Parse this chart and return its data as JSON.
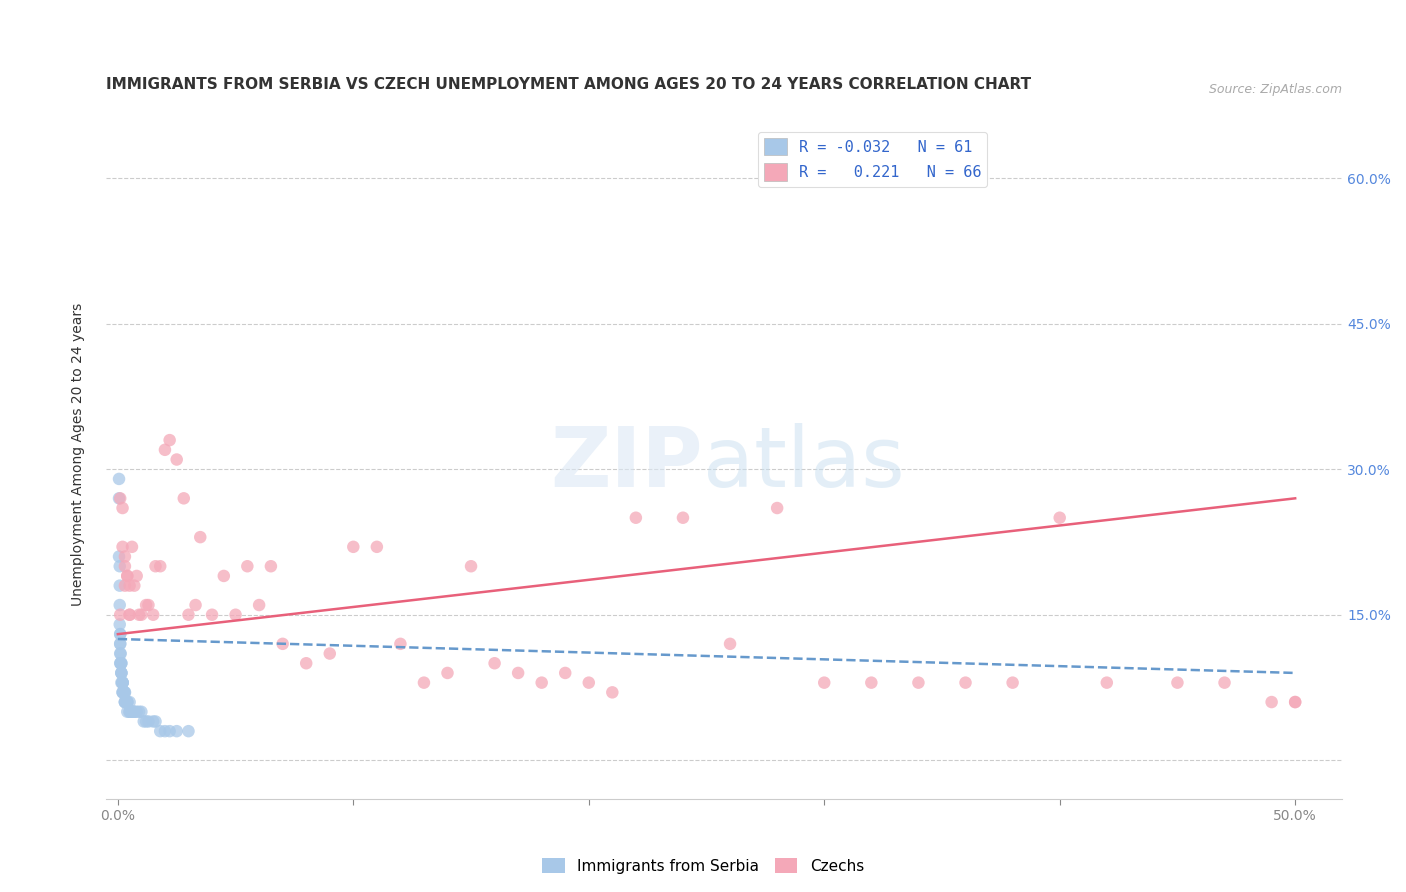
{
  "title": "IMMIGRANTS FROM SERBIA VS CZECH UNEMPLOYMENT AMONG AGES 20 TO 24 YEARS CORRELATION CHART",
  "source": "Source: ZipAtlas.com",
  "ylabel": "Unemployment Among Ages 20 to 24 years",
  "x_ticks": [
    0.0,
    0.1,
    0.2,
    0.3,
    0.4,
    0.5
  ],
  "x_tick_labels": [
    "0.0%",
    "",
    "",
    "",
    "",
    "50.0%"
  ],
  "y_ticks": [
    0.0,
    0.15,
    0.3,
    0.45,
    0.6
  ],
  "y_tick_labels_right": [
    "",
    "15.0%",
    "30.0%",
    "45.0%",
    "60.0%"
  ],
  "xlim": [
    -0.005,
    0.52
  ],
  "ylim": [
    -0.04,
    0.67
  ],
  "color_serbia": "#a8c8e8",
  "color_czech": "#f4a8b8",
  "color_serbia_line": "#6699cc",
  "color_czech_line": "#e8607a",
  "marker_size": 9,
  "serbia_x": [
    0.0005,
    0.0005,
    0.0005,
    0.0008,
    0.0008,
    0.0008,
    0.0008,
    0.001,
    0.001,
    0.001,
    0.001,
    0.001,
    0.001,
    0.0012,
    0.0012,
    0.0012,
    0.0015,
    0.0015,
    0.0015,
    0.0015,
    0.0015,
    0.0015,
    0.002,
    0.002,
    0.002,
    0.002,
    0.002,
    0.002,
    0.002,
    0.0025,
    0.0025,
    0.0025,
    0.003,
    0.003,
    0.003,
    0.003,
    0.003,
    0.004,
    0.004,
    0.004,
    0.004,
    0.005,
    0.005,
    0.005,
    0.006,
    0.006,
    0.007,
    0.007,
    0.008,
    0.009,
    0.01,
    0.011,
    0.012,
    0.013,
    0.015,
    0.016,
    0.018,
    0.02,
    0.022,
    0.025,
    0.03
  ],
  "serbia_y": [
    0.29,
    0.27,
    0.21,
    0.2,
    0.18,
    0.16,
    0.14,
    0.13,
    0.13,
    0.12,
    0.12,
    0.11,
    0.1,
    0.11,
    0.1,
    0.1,
    0.1,
    0.1,
    0.09,
    0.09,
    0.09,
    0.08,
    0.08,
    0.08,
    0.08,
    0.08,
    0.08,
    0.07,
    0.07,
    0.07,
    0.07,
    0.07,
    0.07,
    0.07,
    0.06,
    0.06,
    0.06,
    0.06,
    0.06,
    0.06,
    0.05,
    0.06,
    0.05,
    0.05,
    0.05,
    0.05,
    0.05,
    0.05,
    0.05,
    0.05,
    0.05,
    0.04,
    0.04,
    0.04,
    0.04,
    0.04,
    0.03,
    0.03,
    0.03,
    0.03,
    0.03
  ],
  "czech_x": [
    0.001,
    0.001,
    0.002,
    0.002,
    0.003,
    0.003,
    0.003,
    0.004,
    0.004,
    0.005,
    0.005,
    0.005,
    0.006,
    0.007,
    0.008,
    0.009,
    0.01,
    0.012,
    0.013,
    0.015,
    0.016,
    0.018,
    0.02,
    0.022,
    0.025,
    0.028,
    0.03,
    0.033,
    0.035,
    0.04,
    0.045,
    0.05,
    0.055,
    0.06,
    0.065,
    0.07,
    0.08,
    0.09,
    0.1,
    0.11,
    0.12,
    0.13,
    0.14,
    0.15,
    0.16,
    0.17,
    0.18,
    0.19,
    0.2,
    0.21,
    0.22,
    0.24,
    0.26,
    0.28,
    0.3,
    0.32,
    0.34,
    0.36,
    0.38,
    0.4,
    0.42,
    0.45,
    0.47,
    0.49,
    0.5,
    0.5
  ],
  "czech_y": [
    0.15,
    0.27,
    0.22,
    0.26,
    0.21,
    0.2,
    0.18,
    0.19,
    0.19,
    0.18,
    0.15,
    0.15,
    0.22,
    0.18,
    0.19,
    0.15,
    0.15,
    0.16,
    0.16,
    0.15,
    0.2,
    0.2,
    0.32,
    0.33,
    0.31,
    0.27,
    0.15,
    0.16,
    0.23,
    0.15,
    0.19,
    0.15,
    0.2,
    0.16,
    0.2,
    0.12,
    0.1,
    0.11,
    0.22,
    0.22,
    0.12,
    0.08,
    0.09,
    0.2,
    0.1,
    0.09,
    0.08,
    0.09,
    0.08,
    0.07,
    0.25,
    0.25,
    0.12,
    0.26,
    0.08,
    0.08,
    0.08,
    0.08,
    0.08,
    0.25,
    0.08,
    0.08,
    0.08,
    0.06,
    0.06,
    0.06
  ],
  "serbia_line_x": [
    0.0,
    0.5
  ],
  "serbia_line_y": [
    0.125,
    0.09
  ],
  "czech_line_x": [
    0.0,
    0.5
  ],
  "czech_line_y": [
    0.13,
    0.27
  ]
}
